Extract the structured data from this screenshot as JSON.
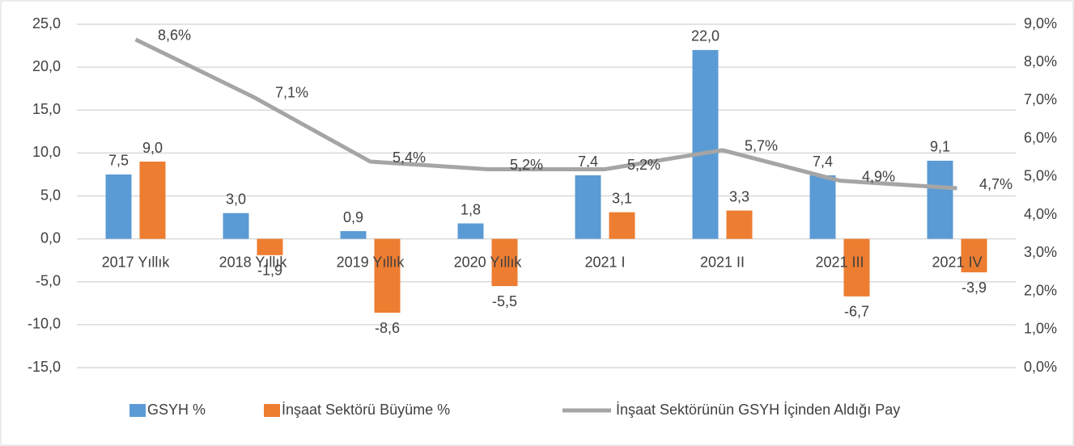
{
  "chart_data": {
    "type": "bar-line",
    "categories": [
      "2017 Yıllık",
      "2018 Yıllık",
      "2019 Yıllık",
      "2020 Yıllık",
      "2021 I",
      "2021 II",
      "2021 III",
      "2021 IV"
    ],
    "series": [
      {
        "name": "GSYH %",
        "type": "bar",
        "color": "#5b9bd5",
        "values": [
          7.5,
          3.0,
          0.9,
          1.8,
          7.4,
          22.0,
          7.4,
          9.1
        ],
        "value_labels": [
          "7,5",
          "3,0",
          "0,9",
          "1,8",
          "7,4",
          "22,0",
          "7,4",
          "9,1"
        ]
      },
      {
        "name": "İnşaat Sektörü Büyüme %",
        "type": "bar",
        "color": "#ed7d31",
        "values": [
          9.0,
          -1.9,
          -8.6,
          -5.5,
          3.1,
          3.3,
          -6.7,
          -3.9
        ],
        "value_labels": [
          "9,0",
          "-1,9",
          "-8,6",
          "-5,5",
          "3,1",
          "3,3",
          "-6,7",
          "-3,9"
        ]
      },
      {
        "name": "İnşaat Sektörünün GSYH İçinden Aldığı Pay",
        "type": "line",
        "axis": "y2",
        "color": "#a5a5a5",
        "values": [
          8.6,
          7.1,
          5.4,
          5.2,
          5.2,
          5.7,
          4.9,
          4.7
        ],
        "value_labels": [
          "8,6%",
          "7,1%",
          "5,4%",
          "5,2%",
          "5,2%",
          "5,7%",
          "4,9%",
          "4,7%"
        ]
      }
    ],
    "ylim": [
      -15,
      25
    ],
    "yticks": [
      {
        "value": -15,
        "label": "-15,0"
      },
      {
        "value": -10,
        "label": "-10,0"
      },
      {
        "value": -5,
        "label": "-5,0"
      },
      {
        "value": 0,
        "label": "0,0"
      },
      {
        "value": 5,
        "label": "5,0"
      },
      {
        "value": 10,
        "label": "10,0"
      },
      {
        "value": 15,
        "label": "15,0"
      },
      {
        "value": 20,
        "label": "20,0"
      },
      {
        "value": 25,
        "label": "25,0"
      }
    ],
    "y2lim": [
      0,
      9
    ],
    "y2ticks": [
      {
        "value": 0,
        "label": "0,0%"
      },
      {
        "value": 1,
        "label": "1,0%"
      },
      {
        "value": 2,
        "label": "2,0%"
      },
      {
        "value": 3,
        "label": "3,0%"
      },
      {
        "value": 4,
        "label": "4,0%"
      },
      {
        "value": 5,
        "label": "5,0%"
      },
      {
        "value": 6,
        "label": "6,0%"
      },
      {
        "value": 7,
        "label": "7,0%"
      },
      {
        "value": 8,
        "label": "8,0%"
      },
      {
        "value": 9,
        "label": "9,0%"
      }
    ],
    "grid": true,
    "legend": "bottom"
  }
}
